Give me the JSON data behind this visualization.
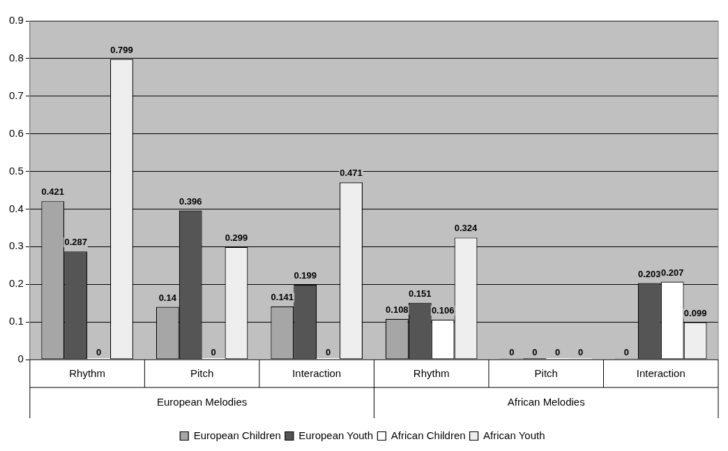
{
  "chart_data": {
    "type": "bar",
    "categories": [
      "Rhythm",
      "Pitch",
      "Interaction",
      "Rhythm",
      "Pitch",
      "Interaction"
    ],
    "series": [
      {
        "name": "European Children",
        "color": "#a6a6a6",
        "values": [
          0.421,
          0.14,
          0.141,
          0.108,
          0,
          0
        ]
      },
      {
        "name": "European Youth",
        "color": "#555555",
        "values": [
          0.287,
          0.396,
          0.199,
          0.151,
          0,
          0.203
        ]
      },
      {
        "name": "African Children",
        "color": "#ffffff",
        "values": [
          0,
          0,
          0,
          0.106,
          0,
          0.207
        ]
      },
      {
        "name": "African Youth",
        "color": "#eeeeee",
        "values": [
          0.799,
          0.299,
          0.471,
          0.324,
          0,
          0.099
        ]
      }
    ],
    "annotations": [
      "European Melodies",
      "African Melodies"
    ],
    "ylim": [
      0,
      0.9
    ],
    "yticks": [
      0,
      0.1,
      0.2,
      0.3,
      0.4,
      0.5,
      0.6,
      0.7,
      0.8,
      0.9
    ],
    "grid": "y",
    "legend": "bottom",
    "data_labels": true
  }
}
